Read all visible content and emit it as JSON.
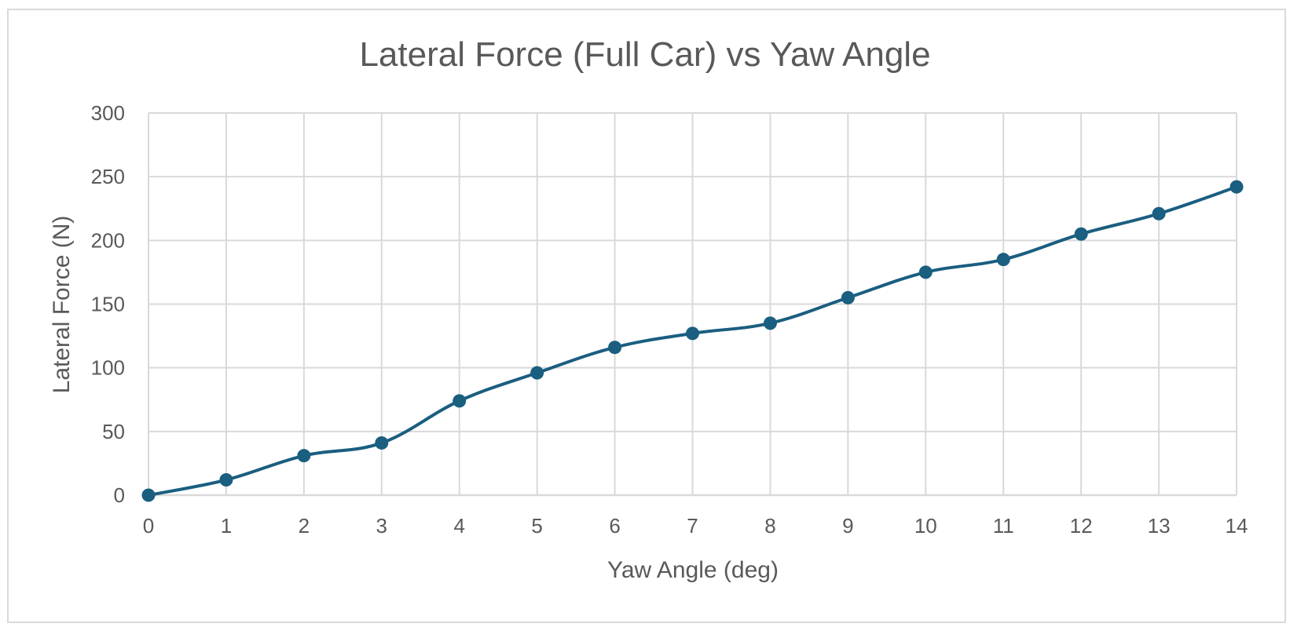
{
  "chart_data": {
    "type": "line",
    "title": "Lateral Force (Full Car) vs Yaw Angle",
    "xlabel": "Yaw Angle (deg)",
    "ylabel": "Lateral Force (N)",
    "xlim": [
      0,
      14
    ],
    "ylim": [
      0,
      300
    ],
    "xticks": [
      0,
      1,
      2,
      3,
      4,
      5,
      6,
      7,
      8,
      9,
      10,
      11,
      12,
      13,
      14
    ],
    "yticks": [
      0,
      50,
      100,
      150,
      200,
      250,
      300
    ],
    "grid": true,
    "legend": "none",
    "smoothed": true,
    "series": [
      {
        "color": "#1a5e80",
        "points": [
          {
            "x": 0,
            "y": 0
          },
          {
            "x": 1,
            "y": 12
          },
          {
            "x": 2,
            "y": 31
          },
          {
            "x": 3,
            "y": 41
          },
          {
            "x": 4,
            "y": 74
          },
          {
            "x": 5,
            "y": 96
          },
          {
            "x": 6,
            "y": 116
          },
          {
            "x": 7,
            "y": 127
          },
          {
            "x": 8,
            "y": 135
          },
          {
            "x": 9,
            "y": 155
          },
          {
            "x": 10,
            "y": 175
          },
          {
            "x": 11,
            "y": 185
          },
          {
            "x": 12,
            "y": 205
          },
          {
            "x": 13,
            "y": 221
          },
          {
            "x": 14,
            "y": 242
          }
        ]
      }
    ],
    "colors": {
      "gridline": "#d9d9d9",
      "text": "#595959",
      "frame": "#d9d9d9"
    }
  }
}
